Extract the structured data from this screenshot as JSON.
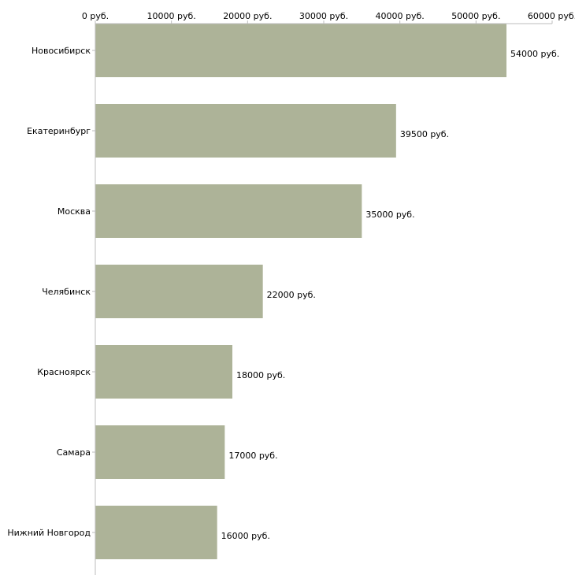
{
  "chart_data": {
    "type": "bar",
    "orientation": "horizontal",
    "title": "",
    "xlabel": "",
    "ylabel": "",
    "xlim": [
      0,
      60000
    ],
    "x_ticks": [
      0,
      10000,
      20000,
      30000,
      40000,
      50000,
      60000
    ],
    "x_tick_labels": [
      "0 руб.",
      "10000 руб.",
      "20000 руб.",
      "30000 руб.",
      "40000 руб.",
      "50000 руб.",
      "60000 руб."
    ],
    "categories": [
      "Новосибирск",
      "Екатеринбург",
      "Москва",
      "Челябинск",
      "Красноярск",
      "Самара",
      "Нижний Новгород"
    ],
    "values": [
      54000,
      39500,
      35000,
      22000,
      18000,
      17000,
      16000
    ],
    "value_labels": [
      "54000 руб.",
      "39500 руб.",
      "35000 руб.",
      "22000 руб.",
      "18000 руб.",
      "17000 руб.",
      "16000 руб."
    ],
    "grid": false,
    "legend": "none"
  },
  "colors": {
    "bar": "#adb398",
    "axis": "#bdbdbd",
    "text": "#000000"
  }
}
